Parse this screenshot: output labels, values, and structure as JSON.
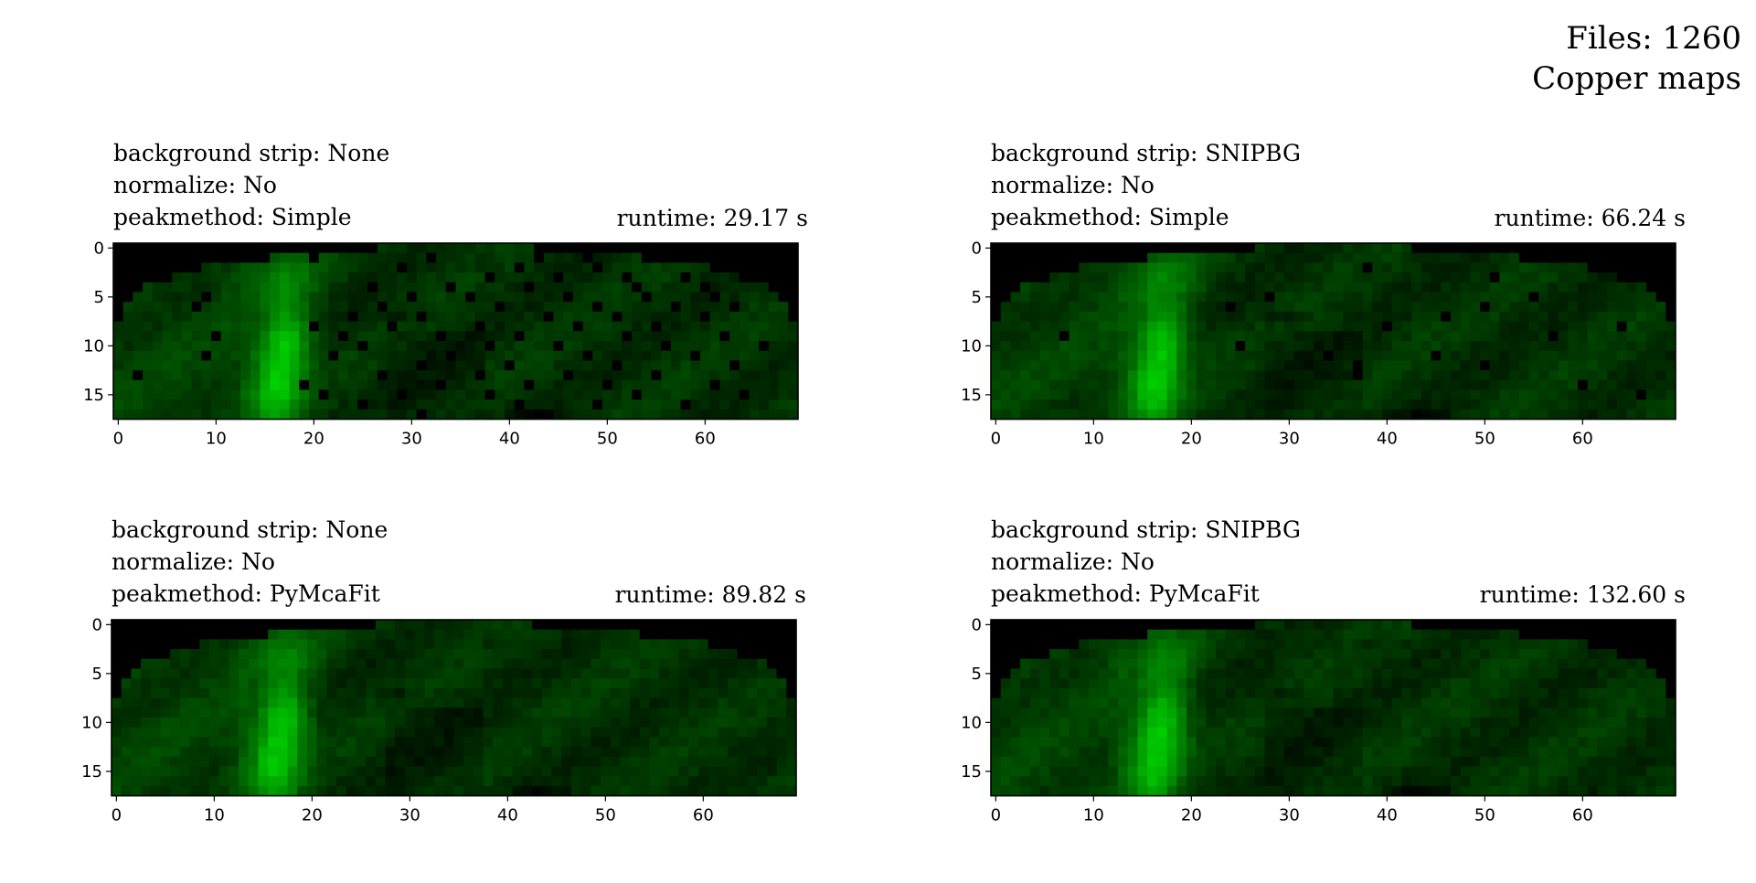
{
  "header": {
    "files_label": "Files: 1260",
    "title": "Copper maps"
  },
  "chart_data": [
    {
      "type": "heatmap",
      "title": "background strip: None",
      "labels": [
        "background strip: None",
        "normalize: No",
        "peakmethod: Simple"
      ],
      "runtime_label": "runtime: 29.17 s",
      "colormap": "black-to-green",
      "rows": 18,
      "cols": 70,
      "xticks": [
        0,
        10,
        20,
        30,
        40,
        50,
        60
      ],
      "yticks": [
        0,
        5,
        10,
        15
      ],
      "xlim": [
        0,
        70
      ],
      "ylim": [
        0,
        18
      ],
      "dropout_pixels": [
        [
          1,
          20
        ],
        [
          1,
          32
        ],
        [
          1,
          43
        ],
        [
          1,
          48
        ],
        [
          1,
          55
        ],
        [
          1,
          61
        ],
        [
          2,
          29
        ],
        [
          2,
          41
        ],
        [
          2,
          49
        ],
        [
          3,
          38
        ],
        [
          3,
          45
        ],
        [
          3,
          52
        ],
        [
          3,
          58
        ],
        [
          4,
          26
        ],
        [
          4,
          34
        ],
        [
          4,
          42
        ],
        [
          4,
          53
        ],
        [
          4,
          60
        ],
        [
          5,
          9
        ],
        [
          5,
          30
        ],
        [
          5,
          36
        ],
        [
          5,
          46
        ],
        [
          5,
          54
        ],
        [
          5,
          61
        ],
        [
          6,
          8
        ],
        [
          6,
          27
        ],
        [
          6,
          39
        ],
        [
          6,
          49
        ],
        [
          6,
          57
        ],
        [
          6,
          63
        ],
        [
          7,
          24
        ],
        [
          7,
          31
        ],
        [
          7,
          44
        ],
        [
          7,
          51
        ],
        [
          7,
          60
        ],
        [
          8,
          20
        ],
        [
          8,
          28
        ],
        [
          8,
          37
        ],
        [
          8,
          47
        ],
        [
          8,
          55
        ],
        [
          9,
          10
        ],
        [
          9,
          23
        ],
        [
          9,
          33
        ],
        [
          9,
          41
        ],
        [
          9,
          52
        ],
        [
          9,
          62
        ],
        [
          10,
          25
        ],
        [
          10,
          38
        ],
        [
          10,
          45
        ],
        [
          10,
          56
        ],
        [
          10,
          66
        ],
        [
          11,
          9
        ],
        [
          11,
          22
        ],
        [
          11,
          34
        ],
        [
          11,
          48
        ],
        [
          11,
          59
        ],
        [
          12,
          31
        ],
        [
          12,
          40
        ],
        [
          12,
          51
        ],
        [
          12,
          63
        ],
        [
          13,
          2
        ],
        [
          13,
          27
        ],
        [
          13,
          37
        ],
        [
          13,
          46
        ],
        [
          13,
          55
        ],
        [
          14,
          19
        ],
        [
          14,
          33
        ],
        [
          14,
          42
        ],
        [
          14,
          50
        ],
        [
          14,
          61
        ],
        [
          15,
          21
        ],
        [
          15,
          29
        ],
        [
          15,
          38
        ],
        [
          15,
          53
        ],
        [
          15,
          64
        ],
        [
          16,
          25
        ],
        [
          16,
          41
        ],
        [
          16,
          49
        ],
        [
          16,
          58
        ],
        [
          17,
          31
        ],
        [
          17,
          43
        ]
      ]
    },
    {
      "type": "heatmap",
      "title": "background strip: SNIPBG",
      "labels": [
        "background strip: SNIPBG",
        "normalize: No",
        "peakmethod: Simple"
      ],
      "runtime_label": "runtime: 66.24 s",
      "colormap": "black-to-green",
      "rows": 18,
      "cols": 70,
      "xticks": [
        0,
        10,
        20,
        30,
        40,
        50,
        60
      ],
      "yticks": [
        0,
        5,
        10,
        15
      ],
      "xlim": [
        0,
        70
      ],
      "ylim": [
        0,
        18
      ],
      "dropout_pixels": [
        [
          2,
          38
        ],
        [
          3,
          51
        ],
        [
          5,
          28
        ],
        [
          5,
          55
        ],
        [
          6,
          24
        ],
        [
          6,
          50
        ],
        [
          7,
          46
        ],
        [
          8,
          40
        ],
        [
          8,
          64
        ],
        [
          9,
          7
        ],
        [
          9,
          57
        ],
        [
          10,
          25
        ],
        [
          11,
          34
        ],
        [
          11,
          45
        ],
        [
          12,
          37
        ],
        [
          12,
          50
        ],
        [
          13,
          37
        ],
        [
          14,
          60
        ],
        [
          15,
          66
        ]
      ]
    },
    {
      "type": "heatmap",
      "title": "background strip: None",
      "labels": [
        "background strip: None",
        "normalize: No",
        "peakmethod: PyMcaFit"
      ],
      "runtime_label": "runtime: 89.82 s",
      "colormap": "black-to-green",
      "rows": 18,
      "cols": 70,
      "xticks": [
        0,
        10,
        20,
        30,
        40,
        50,
        60
      ],
      "yticks": [
        0,
        5,
        10,
        15
      ],
      "xlim": [
        0,
        70
      ],
      "ylim": [
        0,
        18
      ],
      "dropout_pixels": []
    },
    {
      "type": "heatmap",
      "title": "background strip: SNIPBG",
      "labels": [
        "background strip: SNIPBG",
        "normalize: No",
        "peakmethod: PyMcaFit"
      ],
      "runtime_label": "runtime: 132.60 s",
      "colormap": "black-to-green",
      "rows": 18,
      "cols": 70,
      "xticks": [
        0,
        10,
        20,
        30,
        40,
        50,
        60
      ],
      "yticks": [
        0,
        5,
        10,
        15
      ],
      "xlim": [
        0,
        70
      ],
      "ylim": [
        0,
        18
      ],
      "dropout_pixels": []
    }
  ]
}
